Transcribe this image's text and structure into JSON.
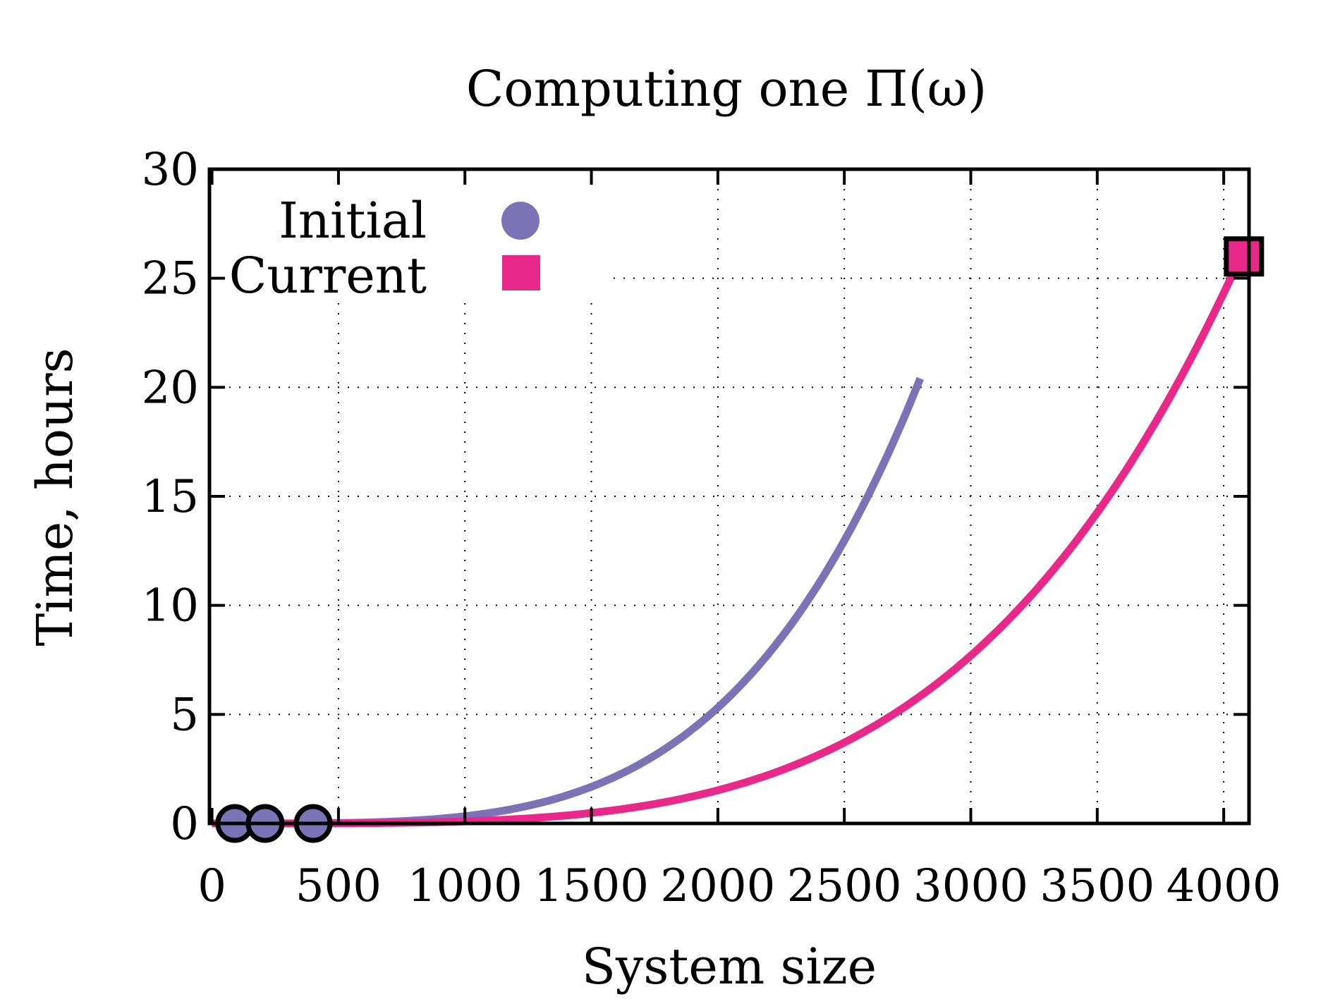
{
  "chart_data": {
    "type": "line",
    "title": "Computing one Π(ω)",
    "xlabel": "System size",
    "ylabel": "Time,  hours",
    "xlim": [
      -10,
      4100
    ],
    "ylim": [
      0,
      30
    ],
    "x_ticks": [
      0,
      500,
      1000,
      1500,
      2000,
      2500,
      3000,
      3500,
      4000
    ],
    "y_ticks": [
      0,
      5,
      10,
      15,
      20,
      25,
      30
    ],
    "grid": true,
    "grid_style": "dotted",
    "legend_placement": "top-left",
    "series": [
      {
        "name": "Initial",
        "color": "#7b73b6",
        "marker": "circle",
        "fit_curve": {
          "form": "power",
          "coef": 3.32e-13,
          "exponent": 4,
          "x_range": [
            0,
            2800
          ]
        },
        "points": [
          {
            "x": 90,
            "y": 0
          },
          {
            "x": 210,
            "y": 0
          },
          {
            "x": 400,
            "y": 0
          }
        ]
      },
      {
        "name": "Current",
        "color": "#e8298a",
        "marker": "square",
        "fit_curve": {
          "form": "power",
          "coef": 9.5e-14,
          "exponent": 4,
          "x_range": [
            0,
            4080
          ]
        },
        "points": [
          {
            "x": 4080,
            "y": 26
          }
        ]
      }
    ]
  }
}
